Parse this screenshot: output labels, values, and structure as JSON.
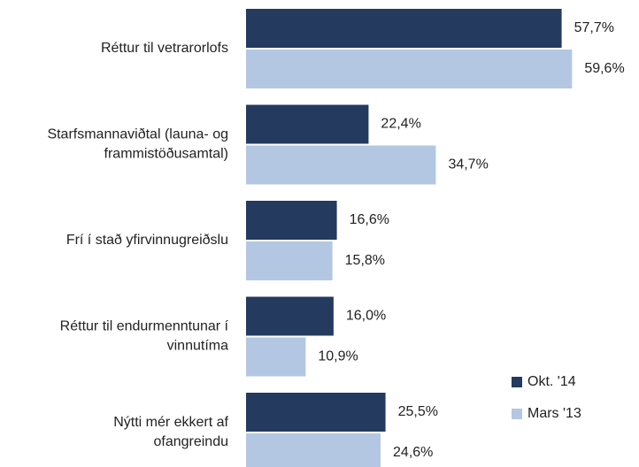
{
  "chart_data": {
    "type": "bar",
    "orientation": "horizontal",
    "categories": [
      [
        "Réttur til vetrarorlofs"
      ],
      [
        "Starfsmannaviðtal (launa- og",
        "frammistöðusamtal)"
      ],
      [
        "Frí í stað yfirvinnugreiðslu"
      ],
      [
        "Réttur til endurmenntunar í",
        "vinnutíma"
      ],
      [
        "Nýtti mér ekkert af",
        "ofangreindu"
      ]
    ],
    "series": [
      {
        "name": "Okt. '14",
        "color": "#243a5e",
        "values": [
          57.7,
          22.4,
          16.6,
          16.0,
          25.5
        ],
        "value_labels": [
          "57,7%",
          "22,4%",
          "16,6%",
          "16,0%",
          "25,5%"
        ]
      },
      {
        "name": "Mars '13",
        "color": "#b4c7e2",
        "values": [
          59.6,
          34.7,
          15.8,
          10.9,
          24.6
        ],
        "value_labels": [
          "59,6%",
          "34,7%",
          "15,8%",
          "10,9%",
          "24,6%"
        ]
      }
    ],
    "legend": "bottom-right"
  }
}
